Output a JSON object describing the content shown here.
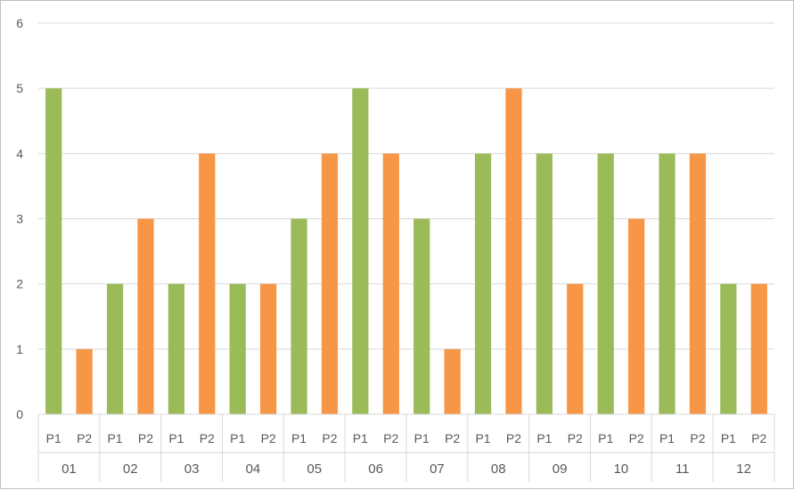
{
  "chart_data": {
    "type": "bar",
    "title": "",
    "xlabel": "",
    "ylabel": "",
    "ylim": [
      0,
      6
    ],
    "yticks": [
      0,
      1,
      2,
      3,
      4,
      5,
      6
    ],
    "grid": true,
    "legend": "none",
    "categories": [
      "01",
      "02",
      "03",
      "04",
      "05",
      "06",
      "07",
      "08",
      "09",
      "10",
      "11",
      "12"
    ],
    "sub_categories": [
      "P1",
      "P2"
    ],
    "series": [
      {
        "name": "P1",
        "color": "#9bbb59",
        "values": [
          5,
          2,
          2,
          2,
          3,
          5,
          3,
          4,
          4,
          4,
          4,
          2
        ]
      },
      {
        "name": "P2",
        "color": "#f79646",
        "values": [
          1,
          3,
          4,
          2,
          4,
          4,
          1,
          5,
          2,
          3,
          4,
          2
        ]
      }
    ]
  }
}
